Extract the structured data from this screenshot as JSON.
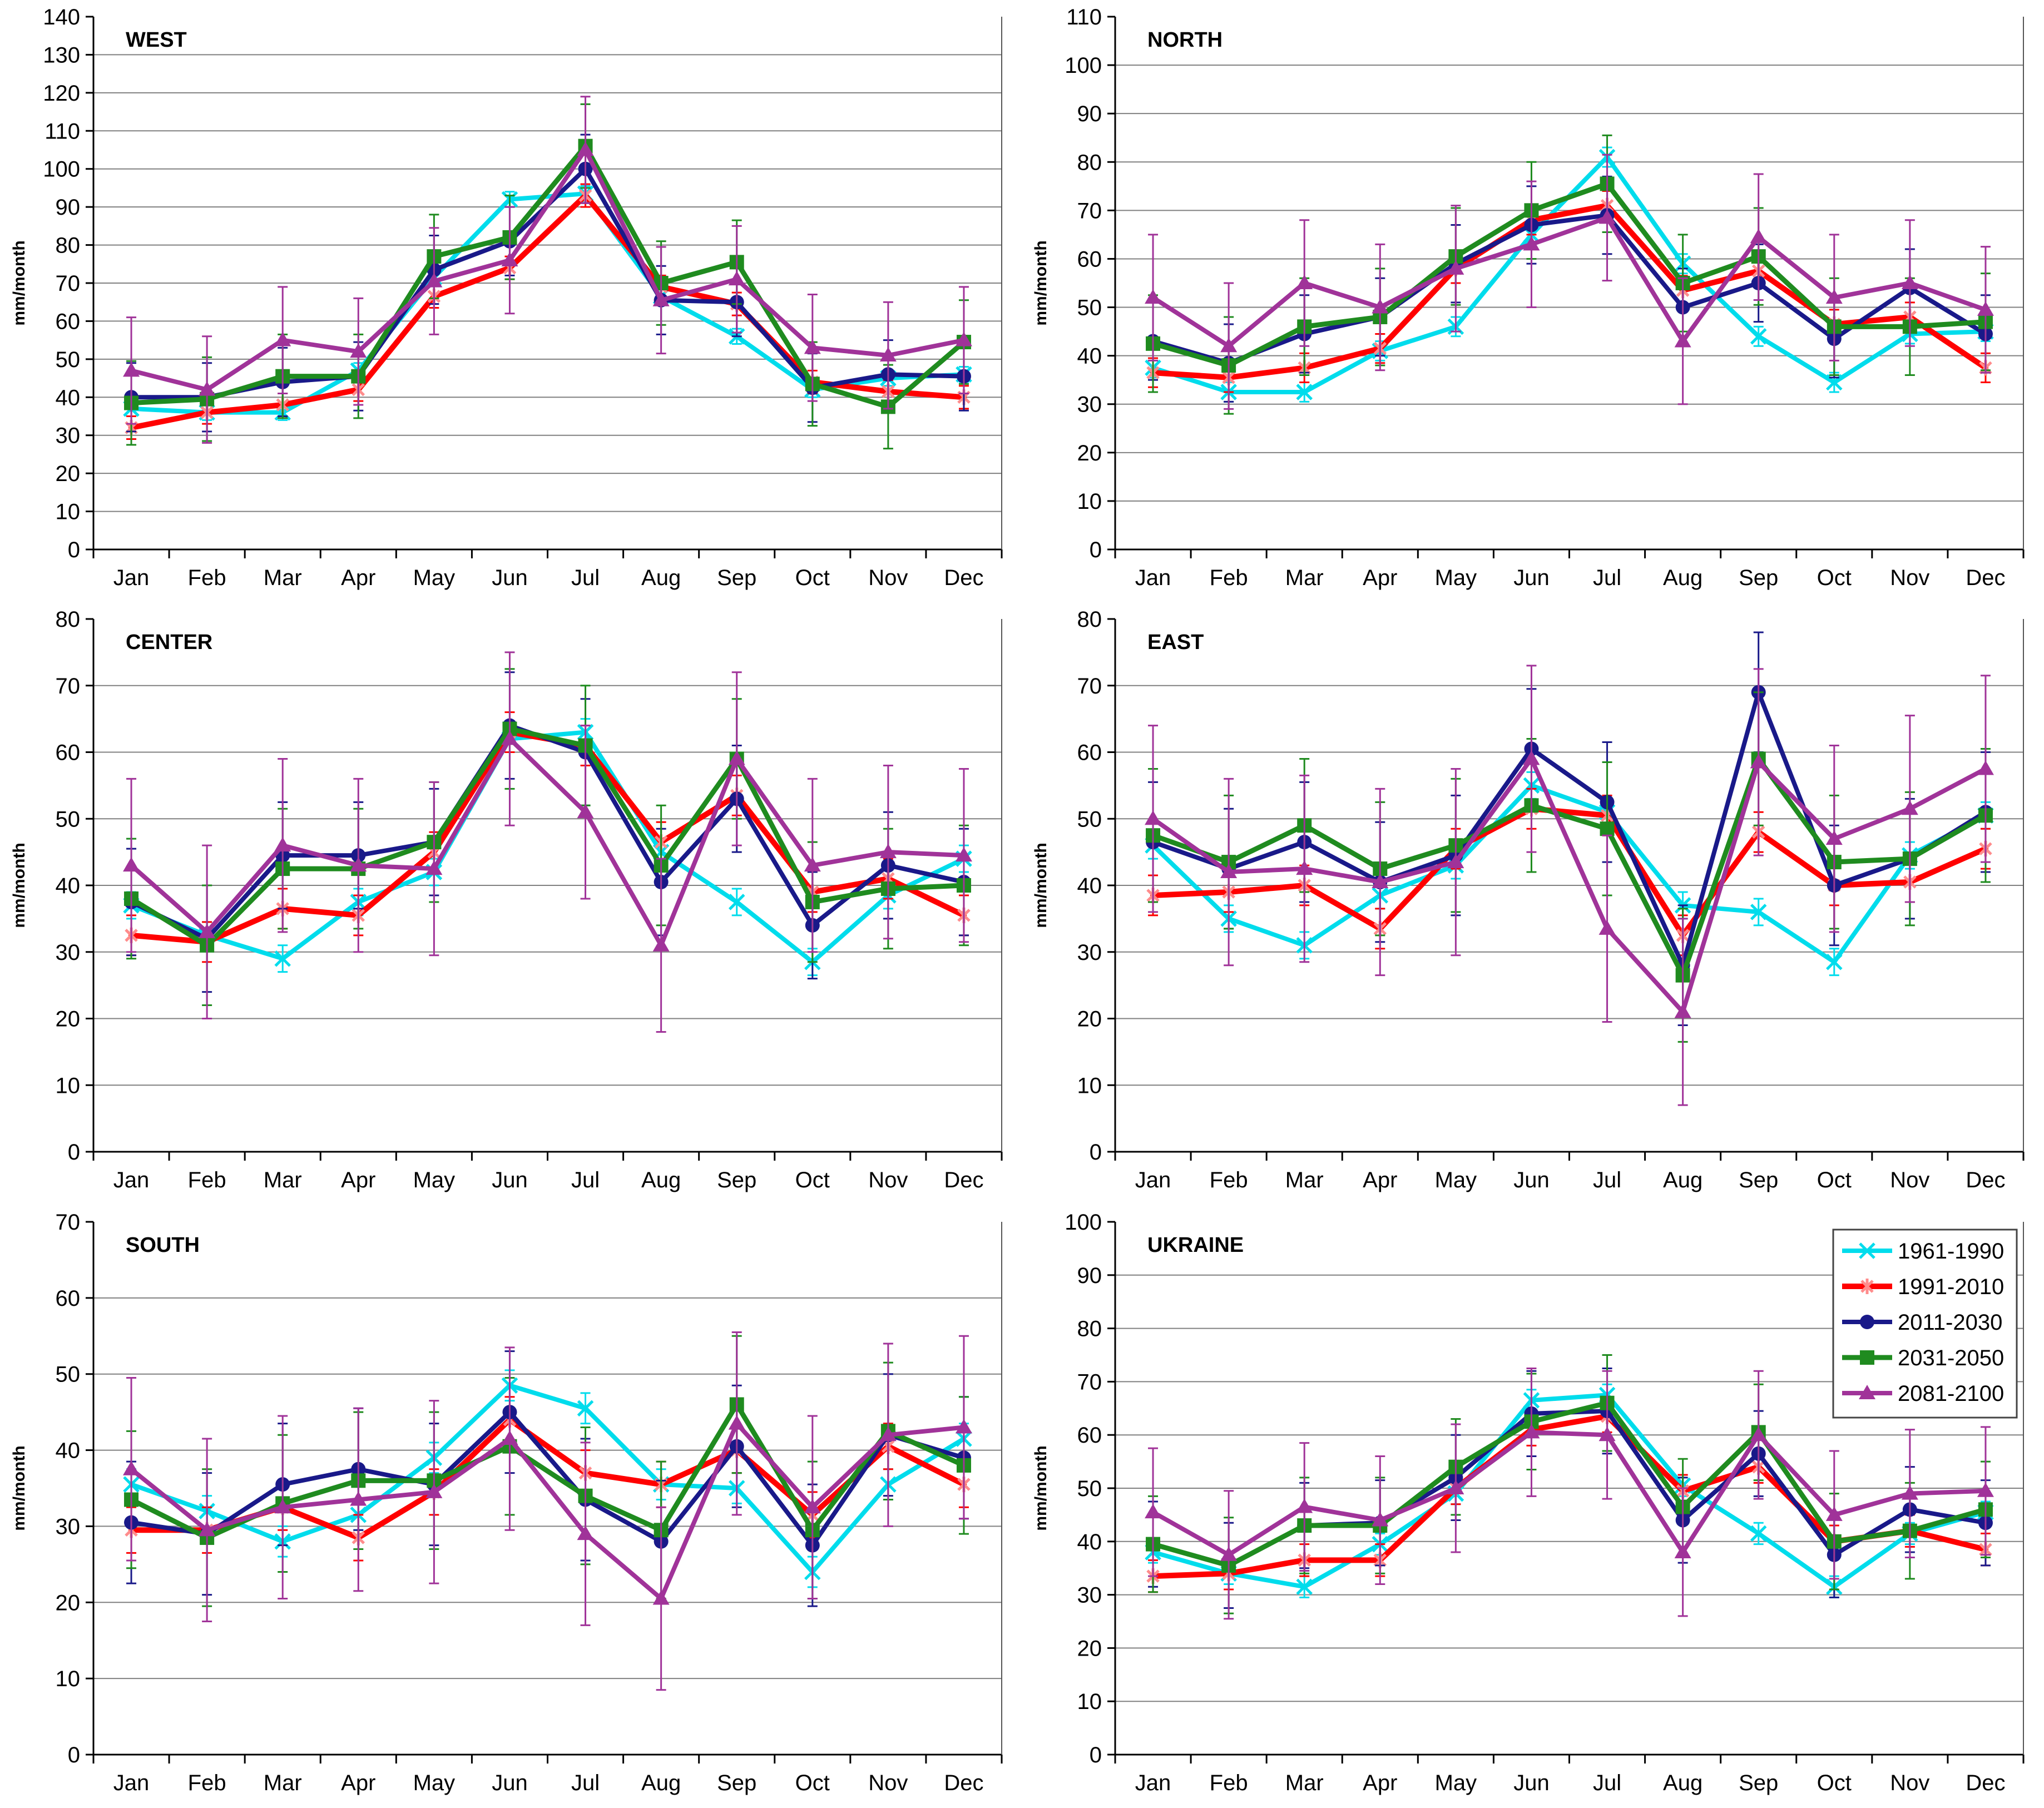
{
  "page": {
    "background": "#FFFFFF",
    "layout": "2x3 grid of line charts"
  },
  "ylabel": "mm/month",
  "months": [
    "Jan",
    "Feb",
    "Mar",
    "Apr",
    "May",
    "Jun",
    "Jul",
    "Aug",
    "Sep",
    "Oct",
    "Nov",
    "Dec"
  ],
  "legend": {
    "location": "top-right of UKRAINE chart",
    "entries": [
      {
        "label": "1961-1990",
        "color": "#00DCEC",
        "marker": "x"
      },
      {
        "label": "1991-2010",
        "color": "#FF0000",
        "marker": "asterisk"
      },
      {
        "label": "2011-2030",
        "color": "#191989",
        "marker": "circle"
      },
      {
        "label": "2031-2050",
        "color": "#1F8B1F",
        "marker": "square"
      },
      {
        "label": "2081-2100",
        "color": "#A03399",
        "marker": "triangle"
      }
    ]
  },
  "chart_data": [
    {
      "type": "line",
      "title": "WEST",
      "xlabel": "",
      "ylabel": "mm/month",
      "ylim": [
        0,
        140
      ],
      "ystep": 10,
      "grid": true,
      "categories": [
        "Jan",
        "Feb",
        "Mar",
        "Apr",
        "May",
        "Jun",
        "Jul",
        "Aug",
        "Sep",
        "Oct",
        "Nov",
        "Dec"
      ],
      "series": [
        {
          "name": "1961-1990",
          "color": "#00DCEC",
          "marker": "x",
          "err": 2,
          "values": [
            37,
            36,
            36,
            47,
            71.5,
            92,
            93.5,
            66.5,
            56,
            42,
            45,
            46
          ]
        },
        {
          "name": "1991-2010",
          "color": "#FF0000",
          "marker": "asterisk",
          "err": 3,
          "values": [
            32,
            36,
            38,
            42,
            66.5,
            74,
            93,
            69,
            64.5,
            44,
            41.5,
            40
          ]
        },
        {
          "name": "2011-2030",
          "color": "#191989",
          "marker": "circle",
          "err": 9,
          "values": [
            40,
            40,
            44,
            45.5,
            73.5,
            81,
            100,
            65.5,
            65,
            42.5,
            46,
            45.5
          ]
        },
        {
          "name": "2031-2050",
          "color": "#1F8B1F",
          "marker": "square",
          "err": 11,
          "values": [
            38.5,
            39.5,
            45.5,
            45.5,
            77,
            82,
            106,
            70,
            75.5,
            43.5,
            37.5,
            54.5
          ]
        },
        {
          "name": "2081-2100",
          "color": "#A03399",
          "marker": "triangle",
          "err": 14,
          "values": [
            47,
            42,
            55,
            52,
            70.5,
            76,
            105,
            65.5,
            71,
            53,
            51,
            55
          ]
        }
      ]
    },
    {
      "type": "line",
      "title": "NORTH",
      "xlabel": "",
      "ylabel": "mm/month",
      "ylim": [
        0,
        110
      ],
      "ystep": 10,
      "grid": true,
      "categories": [
        "Jan",
        "Feb",
        "Mar",
        "Apr",
        "May",
        "Jun",
        "Jul",
        "Aug",
        "Sep",
        "Oct",
        "Nov",
        "Dec"
      ],
      "series": [
        {
          "name": "1961-1990",
          "color": "#00DCEC",
          "marker": "x",
          "err": 2,
          "values": [
            37.5,
            32.5,
            32.5,
            41,
            46,
            65,
            81,
            59,
            44,
            34.5,
            44.5,
            45
          ]
        },
        {
          "name": "1991-2010",
          "color": "#FF0000",
          "marker": "asterisk",
          "err": 3,
          "values": [
            36.5,
            35.5,
            37.5,
            41.5,
            58,
            68,
            71,
            53.5,
            57.5,
            46.5,
            48,
            37.5
          ]
        },
        {
          "name": "2011-2030",
          "color": "#191989",
          "marker": "circle",
          "err": 8,
          "values": [
            43,
            38.5,
            44.5,
            48,
            59,
            67,
            69,
            50,
            55,
            43.5,
            54,
            44.5
          ]
        },
        {
          "name": "2031-2050",
          "color": "#1F8B1F",
          "marker": "square",
          "err": 10,
          "values": [
            42.5,
            38,
            46,
            48,
            60.5,
            70,
            75.5,
            55,
            60.5,
            46,
            46,
            47
          ]
        },
        {
          "name": "2081-2100",
          "color": "#A03399",
          "marker": "triangle",
          "err": 13,
          "values": [
            52,
            42,
            55,
            50,
            58,
            63,
            68.5,
            43,
            64.5,
            52,
            55,
            49.5
          ]
        }
      ]
    },
    {
      "type": "line",
      "title": "CENTER",
      "xlabel": "",
      "ylabel": "mm/month",
      "ylim": [
        0,
        80
      ],
      "ystep": 10,
      "grid": true,
      "categories": [
        "Jan",
        "Feb",
        "Mar",
        "Apr",
        "May",
        "Jun",
        "Jul",
        "Aug",
        "Sep",
        "Oct",
        "Nov",
        "Dec"
      ],
      "series": [
        {
          "name": "1961-1990",
          "color": "#00DCEC",
          "marker": "x",
          "err": 2,
          "values": [
            37,
            32.5,
            29,
            37.5,
            42,
            62,
            63,
            45,
            37.5,
            28.5,
            38.5,
            44
          ]
        },
        {
          "name": "1991-2010",
          "color": "#FF0000",
          "marker": "asterisk",
          "err": 3,
          "values": [
            32.5,
            31.5,
            36.5,
            35.5,
            45,
            63,
            61,
            46.5,
            53.5,
            39,
            41,
            35.5
          ]
        },
        {
          "name": "2011-2030",
          "color": "#191989",
          "marker": "circle",
          "err": 8,
          "values": [
            37.5,
            32,
            44.5,
            44.5,
            46.5,
            64,
            60,
            40.5,
            53,
            34,
            43,
            40.5
          ]
        },
        {
          "name": "2031-2050",
          "color": "#1F8B1F",
          "marker": "square",
          "err": 9,
          "values": [
            38,
            31,
            42.5,
            42.5,
            46.5,
            63.5,
            61,
            43,
            59,
            37.5,
            39.5,
            40
          ]
        },
        {
          "name": "2081-2100",
          "color": "#A03399",
          "marker": "triangle",
          "err": 13,
          "values": [
            43,
            33,
            46,
            43,
            42.5,
            62,
            51,
            31,
            59,
            43,
            45,
            44.5
          ]
        }
      ]
    },
    {
      "type": "line",
      "title": "EAST",
      "xlabel": "",
      "ylabel": "mm/month",
      "ylim": [
        0,
        80
      ],
      "ystep": 10,
      "grid": true,
      "categories": [
        "Jan",
        "Feb",
        "Mar",
        "Apr",
        "May",
        "Jun",
        "Jul",
        "Aug",
        "Sep",
        "Oct",
        "Nov",
        "Dec"
      ],
      "series": [
        {
          "name": "1961-1990",
          "color": "#00DCEC",
          "marker": "x",
          "err": 2,
          "values": [
            46,
            35,
            31,
            38.5,
            43,
            55,
            51,
            37,
            36,
            28.5,
            44.5,
            50.5
          ]
        },
        {
          "name": "1991-2010",
          "color": "#FF0000",
          "marker": "asterisk",
          "err": 3,
          "values": [
            38.5,
            39,
            40,
            33.5,
            45.5,
            51.5,
            50.5,
            32.5,
            48,
            40,
            40.5,
            45.5
          ]
        },
        {
          "name": "2011-2030",
          "color": "#191989",
          "marker": "circle",
          "err": 9,
          "values": [
            46.5,
            42.5,
            46.5,
            40.5,
            44.5,
            60.5,
            52.5,
            28,
            69,
            40,
            44,
            51
          ]
        },
        {
          "name": "2031-2050",
          "color": "#1F8B1F",
          "marker": "square",
          "err": 10,
          "values": [
            47.5,
            43.5,
            49,
            42.5,
            46,
            52,
            48.5,
            26.5,
            59,
            43.5,
            44,
            50.5
          ]
        },
        {
          "name": "2081-2100",
          "color": "#A03399",
          "marker": "triangle",
          "err": 14,
          "values": [
            50,
            42,
            42.5,
            40.5,
            43.5,
            59,
            33.5,
            21,
            58.5,
            47,
            51.5,
            57.5
          ]
        }
      ]
    },
    {
      "type": "line",
      "title": "SOUTH",
      "xlabel": "",
      "ylabel": "mm/month",
      "ylim": [
        0,
        70
      ],
      "ystep": 10,
      "grid": true,
      "categories": [
        "Jan",
        "Feb",
        "Mar",
        "Apr",
        "May",
        "Jun",
        "Jul",
        "Aug",
        "Sep",
        "Oct",
        "Nov",
        "Dec"
      ],
      "series": [
        {
          "name": "1961-1990",
          "color": "#00DCEC",
          "marker": "x",
          "err": 2,
          "values": [
            35.5,
            32,
            28,
            31.5,
            39,
            48.5,
            45.5,
            35.5,
            35,
            24,
            35.5,
            41.5
          ]
        },
        {
          "name": "1991-2010",
          "color": "#FF0000",
          "marker": "asterisk",
          "err": 3,
          "values": [
            29.5,
            29.5,
            32.5,
            28.5,
            34.5,
            44,
            37,
            35.5,
            40,
            31.5,
            40.5,
            35.5
          ]
        },
        {
          "name": "2011-2030",
          "color": "#191989",
          "marker": "circle",
          "err": 8,
          "values": [
            30.5,
            29,
            35.5,
            37.5,
            35.5,
            45,
            33.5,
            28,
            40.5,
            27.5,
            42,
            39
          ]
        },
        {
          "name": "2031-2050",
          "color": "#1F8B1F",
          "marker": "square",
          "err": 9,
          "values": [
            33.5,
            28.5,
            33,
            36,
            36,
            40.5,
            34,
            29.5,
            46,
            29.5,
            42.5,
            38
          ]
        },
        {
          "name": "2081-2100",
          "color": "#A03399",
          "marker": "triangle",
          "err": 12,
          "values": [
            37.5,
            29.5,
            32.5,
            33.5,
            34.5,
            41.5,
            29,
            20.5,
            43.5,
            32.5,
            42,
            43
          ]
        }
      ]
    },
    {
      "type": "line",
      "title": "UKRAINE",
      "xlabel": "",
      "ylabel": "mm/month",
      "ylim": [
        0,
        100
      ],
      "ystep": 10,
      "grid": true,
      "legend": true,
      "categories": [
        "Jan",
        "Feb",
        "Mar",
        "Apr",
        "May",
        "Jun",
        "Jul",
        "Aug",
        "Sep",
        "Oct",
        "Nov",
        "Dec"
      ],
      "series": [
        {
          "name": "1961-1990",
          "color": "#00DCEC",
          "marker": "x",
          "err": 2,
          "values": [
            38,
            34,
            31.5,
            39.5,
            49,
            66.5,
            67.5,
            50.5,
            41.5,
            31.5,
            41.5,
            45.5
          ]
        },
        {
          "name": "1991-2010",
          "color": "#FF0000",
          "marker": "asterisk",
          "err": 3,
          "values": [
            33.5,
            34,
            36.5,
            36.5,
            50,
            61,
            63.5,
            49.5,
            54,
            40,
            42,
            38.5
          ]
        },
        {
          "name": "2011-2030",
          "color": "#191989",
          "marker": "circle",
          "err": 8,
          "values": [
            39.5,
            35.5,
            43,
            43.5,
            52,
            64,
            64.5,
            44,
            56.5,
            37.5,
            46,
            43.5
          ]
        },
        {
          "name": "2031-2050",
          "color": "#1F8B1F",
          "marker": "square",
          "err": 9,
          "values": [
            39.5,
            35.5,
            43,
            43,
            54,
            62.5,
            66,
            46.5,
            60.5,
            40,
            42,
            46
          ]
        },
        {
          "name": "2081-2100",
          "color": "#A03399",
          "marker": "triangle",
          "err": 12,
          "values": [
            45.5,
            37.5,
            46.5,
            44,
            50,
            60.5,
            60,
            38,
            60,
            45,
            49,
            49.5
          ]
        }
      ]
    }
  ],
  "style": {
    "gridline_color": "#808080",
    "axis_color": "#000000",
    "red_marker_color": "#FF8C8C"
  }
}
